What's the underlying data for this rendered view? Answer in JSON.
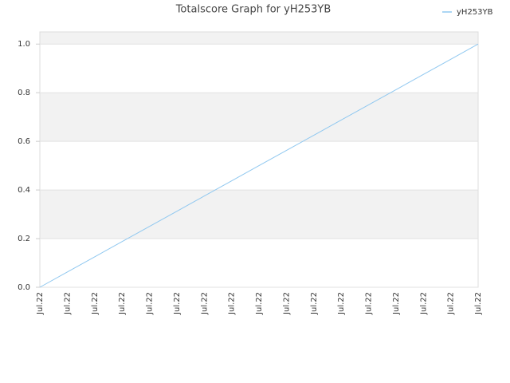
{
  "chart_data": {
    "type": "line",
    "title": "Totalscore Graph for yH253YB",
    "categories": [
      "Jul.22",
      "Jul.22",
      "Jul.22",
      "Jul.22",
      "Jul.22",
      "Jul.22",
      "Jul.22",
      "Jul.22",
      "Jul.22",
      "Jul.22",
      "Jul.22",
      "Jul.22",
      "Jul.22",
      "Jul.22",
      "Jul.22",
      "Jul.22",
      "Jul.22"
    ],
    "series": [
      {
        "name": "yH253YB",
        "color": "#90c8f0",
        "values": [
          0,
          0.0625,
          0.125,
          0.1875,
          0.25,
          0.3125,
          0.375,
          0.4375,
          0.5,
          0.5625,
          0.625,
          0.6875,
          0.75,
          0.8125,
          0.875,
          0.9375,
          1
        ]
      }
    ],
    "ylim": [
      0,
      1.05
    ],
    "yticks": [
      {
        "value": 0,
        "label": "0.0"
      },
      0.2,
      0.4,
      0.6,
      0.8,
      {
        "value": 1,
        "label": "1.0"
      }
    ],
    "grid": true,
    "legend": "top-right"
  }
}
